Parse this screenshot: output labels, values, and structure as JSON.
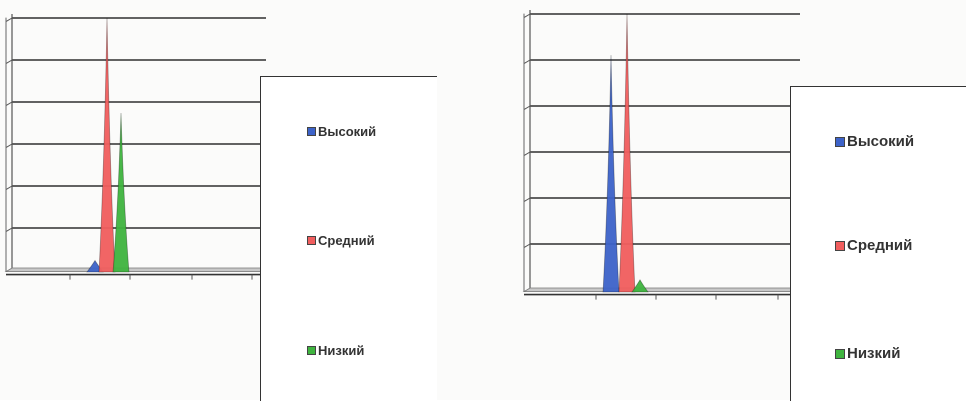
{
  "colors": {
    "high": "#3d63c9",
    "medium": "#f15e5e",
    "low": "#3fb43f"
  },
  "chart_data": [
    {
      "type": "area",
      "title": "",
      "xlabel": "",
      "ylabel": "",
      "grid": true,
      "three_d": true,
      "legend_position": "right",
      "series": [
        {
          "name": "Высокий",
          "color_key": "high",
          "peak": 0.03
        },
        {
          "name": "Средний",
          "color_key": "medium",
          "peak": 1.0
        },
        {
          "name": "Низкий",
          "color_key": "low",
          "peak": 0.62
        }
      ],
      "legend": [
        "Высокий",
        "Средний",
        "Низкий"
      ]
    },
    {
      "type": "area",
      "title": "",
      "xlabel": "",
      "ylabel": "",
      "grid": true,
      "three_d": true,
      "legend_position": "right",
      "series": [
        {
          "name": "Высокий",
          "color_key": "high",
          "peak": 0.85
        },
        {
          "name": "Средний",
          "color_key": "medium",
          "peak": 1.0
        },
        {
          "name": "Низкий",
          "color_key": "low",
          "peak": 0.03
        }
      ],
      "legend": [
        "Высокий",
        "Средний",
        "Низкий"
      ]
    }
  ]
}
